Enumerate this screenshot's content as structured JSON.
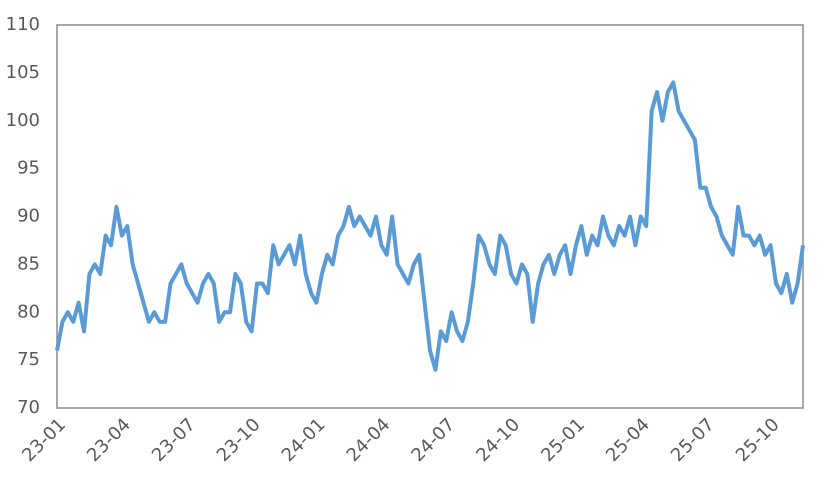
{
  "chart_data": {
    "type": "line",
    "color": "#5b9bd5",
    "grid": false,
    "ylim": [
      70,
      110
    ],
    "yticks": [
      70,
      75,
      80,
      85,
      90,
      95,
      100,
      105,
      110
    ],
    "categories": [
      "23-01",
      null,
      null,
      null,
      null,
      null,
      null,
      null,
      null,
      null,
      null,
      null,
      "23-04",
      null,
      null,
      null,
      null,
      null,
      null,
      null,
      null,
      null,
      null,
      null,
      "23-07",
      null,
      null,
      null,
      null,
      null,
      null,
      null,
      null,
      null,
      null,
      null,
      "23-10",
      null,
      null,
      null,
      null,
      null,
      null,
      null,
      null,
      null,
      null,
      null,
      "24-01",
      null,
      null,
      null,
      null,
      null,
      null,
      null,
      null,
      null,
      null,
      null,
      "24-04",
      null,
      null,
      null,
      null,
      null,
      null,
      null,
      null,
      null,
      null,
      null,
      "24-07",
      null,
      null,
      null,
      null,
      null,
      null,
      null,
      null,
      null,
      null,
      null,
      "24-10",
      null,
      null,
      null,
      null,
      null,
      null,
      null,
      null,
      null,
      null,
      null,
      "25-01",
      null,
      null,
      null,
      null,
      null,
      null,
      null,
      null,
      null,
      null,
      null,
      "25-04",
      null,
      null,
      null,
      null,
      null,
      null,
      null,
      null,
      null,
      null,
      null,
      "25-07",
      null,
      null,
      null,
      null,
      null,
      null,
      null,
      null,
      null,
      null,
      null,
      "25-10",
      null,
      null,
      null,
      null,
      null,
      null
    ],
    "values": [
      76,
      79,
      80,
      79,
      81,
      78,
      84,
      85,
      84,
      88,
      87,
      91,
      88,
      89,
      85,
      83,
      81,
      79,
      80,
      79,
      79,
      83,
      84,
      85,
      83,
      82,
      81,
      83,
      84,
      83,
      79,
      80,
      80,
      84,
      83,
      79,
      78,
      83,
      83,
      82,
      87,
      85,
      86,
      87,
      85,
      88,
      84,
      82,
      81,
      84,
      86,
      85,
      88,
      89,
      91,
      89,
      90,
      89,
      88,
      90,
      87,
      86,
      90,
      85,
      84,
      83,
      85,
      86,
      81,
      76,
      74,
      78,
      77,
      80,
      78,
      77,
      79,
      83,
      88,
      87,
      85,
      84,
      88,
      87,
      84,
      83,
      85,
      84,
      79,
      83,
      85,
      86,
      84,
      86,
      87,
      84,
      87,
      89,
      86,
      88,
      87,
      90,
      88,
      87,
      89,
      88,
      90,
      87,
      90,
      89,
      101,
      103,
      100,
      103,
      104,
      101,
      100,
      99,
      98,
      93,
      93,
      91,
      90,
      88,
      87,
      86,
      91,
      88,
      88,
      87,
      88,
      86,
      87,
      83,
      82,
      84,
      81,
      83,
      87
    ]
  }
}
